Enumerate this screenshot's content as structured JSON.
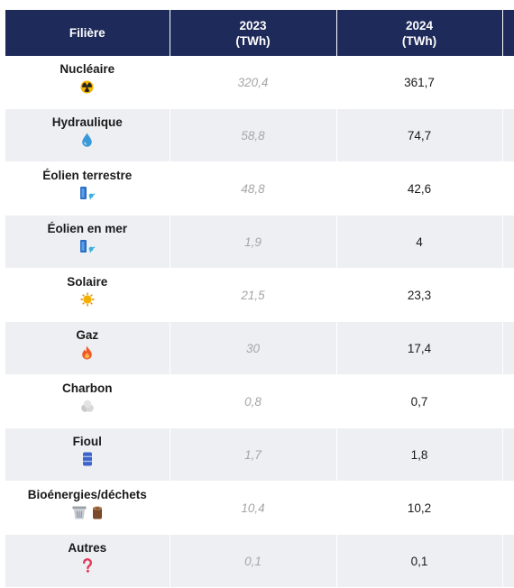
{
  "header": {
    "filiere": "Filière",
    "year_2023": "2023",
    "unit_2023": "(TWh)",
    "year_2024": "2024",
    "unit_2024": "(TWh)"
  },
  "rows": [
    {
      "name": "Nucléaire",
      "v2023": "320,4",
      "v2024": "361,7",
      "icons": [
        "radioactive-icon"
      ]
    },
    {
      "name": "Hydraulique",
      "v2023": "58,8",
      "v2024": "74,7",
      "icons": [
        "water-drop-icon"
      ]
    },
    {
      "name": "Éolien terrestre",
      "v2023": "48,8",
      "v2024": "42,6",
      "icons": [
        "wind-turbine-icon"
      ]
    },
    {
      "name": "Éolien en mer",
      "v2023": "1,9",
      "v2024": "4",
      "icons": [
        "wind-turbine-icon"
      ]
    },
    {
      "name": "Solaire",
      "v2023": "21,5",
      "v2024": "23,3",
      "icons": [
        "sun-icon"
      ]
    },
    {
      "name": "Gaz",
      "v2023": "30",
      "v2024": "17,4",
      "icons": [
        "flame-icon"
      ]
    },
    {
      "name": "Charbon",
      "v2023": "0,8",
      "v2024": "0,7",
      "icons": [
        "coal-icon"
      ]
    },
    {
      "name": "Fioul",
      "v2023": "1,7",
      "v2024": "1,8",
      "icons": [
        "oil-barrel-icon"
      ]
    },
    {
      "name": "Bioénergies/déchets",
      "v2023": "10,4",
      "v2024": "10,2",
      "icons": [
        "trash-bin-icon",
        "wood-log-icon"
      ]
    },
    {
      "name": "Autres",
      "v2023": "0,1",
      "v2024": "0,1",
      "icons": [
        "question-mark-icon"
      ]
    }
  ],
  "colors": {
    "header_bg": "#1e2a5a",
    "header_text": "#ffffff",
    "stripe": "#eeeff3",
    "value_2023": "#a6a6a6"
  }
}
